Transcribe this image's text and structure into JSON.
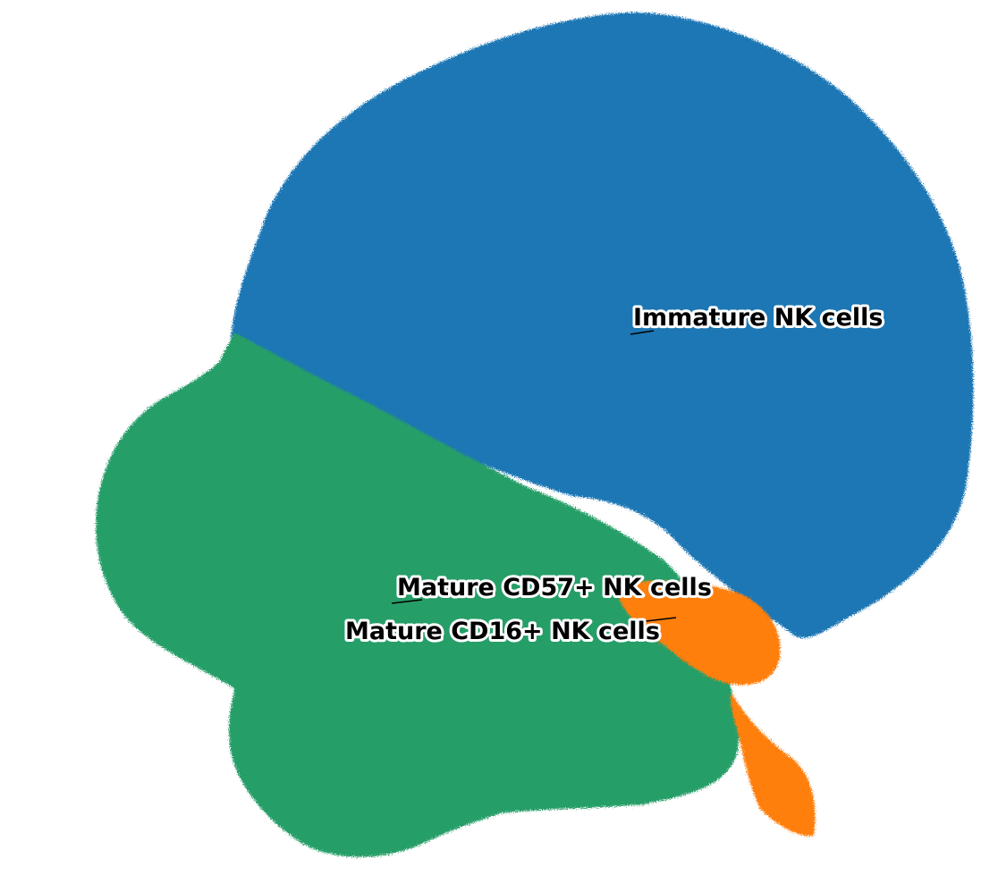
{
  "chart_data": {
    "type": "scatter",
    "title": "",
    "xlabel": "",
    "ylabel": "",
    "axes_visible": false,
    "grid": false,
    "legend": "none",
    "series": [
      {
        "name": "Immature NK cells",
        "color": "#1f77b4",
        "annotation": "Immature NK cells"
      },
      {
        "name": "Mature CD57+ NK cells",
        "color": "#279e68",
        "annotation": "Mature CD57+ NK cells"
      },
      {
        "name": "Mature CD16+ NK cells",
        "color": "#ff7f0e",
        "annotation": "Mature CD16+ NK cells"
      }
    ]
  }
}
